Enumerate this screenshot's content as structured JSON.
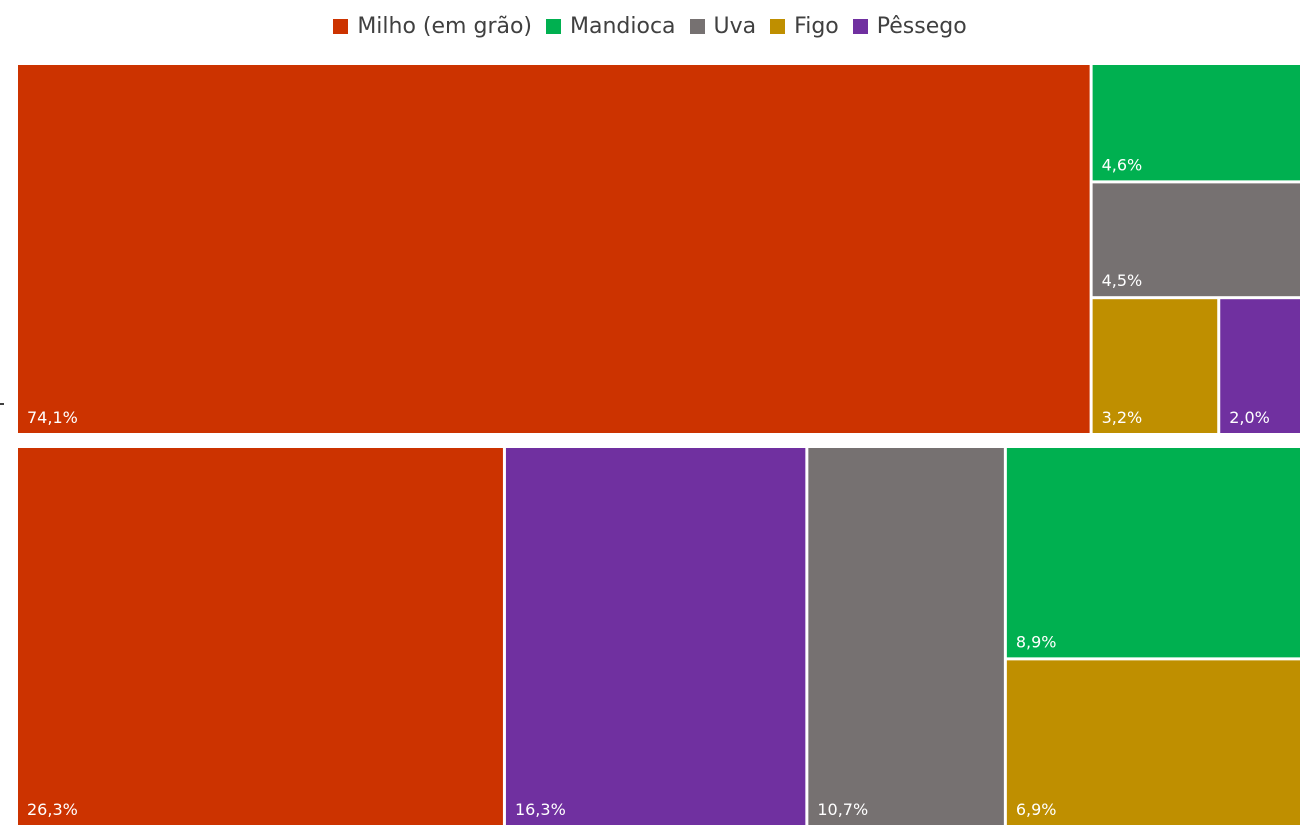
{
  "colors": {
    "milho": "#cc3300",
    "mandioca": "#00b050",
    "uva": "#767171",
    "figo": "#bf8f00",
    "pessego": "#7030a0"
  },
  "legend": [
    {
      "label": "Milho (em grão)",
      "color_key": "milho"
    },
    {
      "label": "Mandioca",
      "color_key": "mandioca"
    },
    {
      "label": "Uva",
      "color_key": "uva"
    },
    {
      "label": "Figo",
      "color_key": "figo"
    },
    {
      "label": "Pêssego",
      "color_key": "pessego"
    }
  ],
  "chart_data": {
    "type": "treemap",
    "title": "",
    "legend_position": "top",
    "groups": [
      {
        "name": "",
        "items": [
          {
            "category": "Milho (em grão)",
            "color_key": "milho",
            "value": 74.1,
            "label": "74,1%"
          },
          {
            "category": "Mandioca",
            "color_key": "mandioca",
            "value": 4.6,
            "label": "4,6%"
          },
          {
            "category": "Uva",
            "color_key": "uva",
            "value": 4.5,
            "label": "4,5%"
          },
          {
            "category": "Figo",
            "color_key": "figo",
            "value": 3.2,
            "label": "3,2%"
          },
          {
            "category": "Pêssego",
            "color_key": "pessego",
            "value": 2.0,
            "label": "2,0%"
          }
        ]
      },
      {
        "name": "",
        "items": [
          {
            "category": "Milho (em grão)",
            "color_key": "milho",
            "value": 26.3,
            "label": "26,3%"
          },
          {
            "category": "Pêssego",
            "color_key": "pessego",
            "value": 16.3,
            "label": "16,3%"
          },
          {
            "category": "Uva",
            "color_key": "uva",
            "value": 10.7,
            "label": "10,7%"
          },
          {
            "category": "Mandioca",
            "color_key": "mandioca",
            "value": 8.9,
            "label": "8,9%"
          },
          {
            "category": "Figo",
            "color_key": "figo",
            "value": 6.9,
            "label": "6,9%"
          }
        ]
      }
    ]
  }
}
